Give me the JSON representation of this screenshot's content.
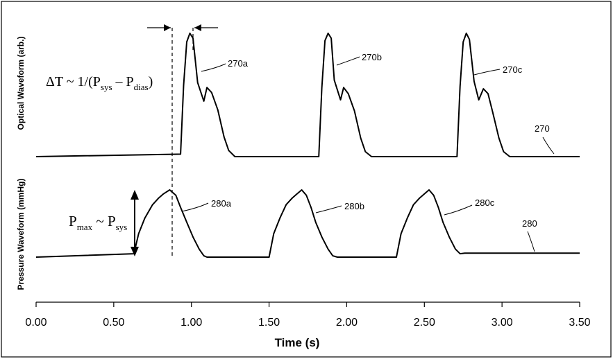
{
  "chart_data": {
    "type": "line",
    "xlabel": "Time (s)",
    "x_ticks": [
      "0.00",
      "0.50",
      "1.00",
      "1.50",
      "2.00",
      "2.50",
      "3.00",
      "3.50"
    ],
    "xlim": [
      0,
      3.5
    ],
    "grid": false,
    "legend": "none",
    "panels": [
      {
        "ylabel": "Optical Waveform (arb.)",
        "series": [
          {
            "label": "270",
            "x": [
              0.0,
              0.93,
              0.95,
              0.97,
              0.99,
              1.01,
              1.04,
              1.08,
              1.1,
              1.13,
              1.17,
              1.21,
              1.24,
              1.28,
              1.82,
              1.84,
              1.86,
              1.88,
              1.9,
              1.92,
              1.96,
              1.98,
              2.01,
              2.05,
              2.09,
              2.12,
              2.16,
              2.71,
              2.73,
              2.75,
              2.77,
              2.79,
              2.82,
              2.85,
              2.88,
              2.91,
              2.94,
              2.98,
              3.01,
              3.05,
              3.5
            ],
            "y": [
              0.0,
              0.02,
              0.58,
              0.93,
              1.0,
              0.96,
              0.6,
              0.45,
              0.56,
              0.52,
              0.38,
              0.16,
              0.05,
              0.0,
              0.0,
              0.56,
              0.94,
              1.0,
              0.96,
              0.62,
              0.46,
              0.56,
              0.51,
              0.37,
              0.15,
              0.04,
              0.0,
              0.0,
              0.57,
              0.93,
              1.0,
              0.95,
              0.61,
              0.46,
              0.55,
              0.51,
              0.36,
              0.15,
              0.04,
              0.0,
              0.0
            ]
          },
          {
            "label": "280",
            "x": [
              0.0,
              0.63,
              0.66,
              0.7,
              0.75,
              0.79,
              0.82,
              0.86,
              0.9,
              0.93,
              0.97,
              1.01,
              1.05,
              1.08,
              1.1,
              1.5,
              1.53,
              1.57,
              1.61,
              1.65,
              1.68,
              1.71,
              1.74,
              1.77,
              1.8,
              1.84,
              1.88,
              1.91,
              1.94,
              2.32,
              2.35,
              2.39,
              2.43,
              2.47,
              2.5,
              2.53,
              2.56,
              2.59,
              2.62,
              2.66,
              2.7,
              2.73,
              2.76,
              3.5
            ],
            "y": [
              0.0,
              0.05,
              0.35,
              0.58,
              0.78,
              0.88,
              0.94,
              1.0,
              0.92,
              0.74,
              0.52,
              0.3,
              0.12,
              0.02,
              0.0,
              0.0,
              0.35,
              0.58,
              0.78,
              0.88,
              0.94,
              1.0,
              0.92,
              0.74,
              0.52,
              0.3,
              0.12,
              0.02,
              0.0,
              0.0,
              0.35,
              0.58,
              0.78,
              0.88,
              0.94,
              1.0,
              0.92,
              0.74,
              0.52,
              0.3,
              0.12,
              0.05,
              0.06,
              0.06
            ]
          }
        ]
      }
    ],
    "annotations": {
      "optical_peaks": [
        "270a",
        "270b",
        "270c"
      ],
      "optical_trace": "270",
      "pressure_peaks": [
        "280a",
        "280b",
        "280c"
      ],
      "pressure_trace": "280",
      "delta_t": {
        "lead": "ΔT ~ 1/(P",
        "sub1": "sys",
        "mid": " – P",
        "sub2": "dias",
        "tail": ")"
      },
      "pmax": {
        "lead": "P",
        "sub1": "max",
        "mid": " ~ P",
        "sub2": "sys"
      }
    }
  }
}
